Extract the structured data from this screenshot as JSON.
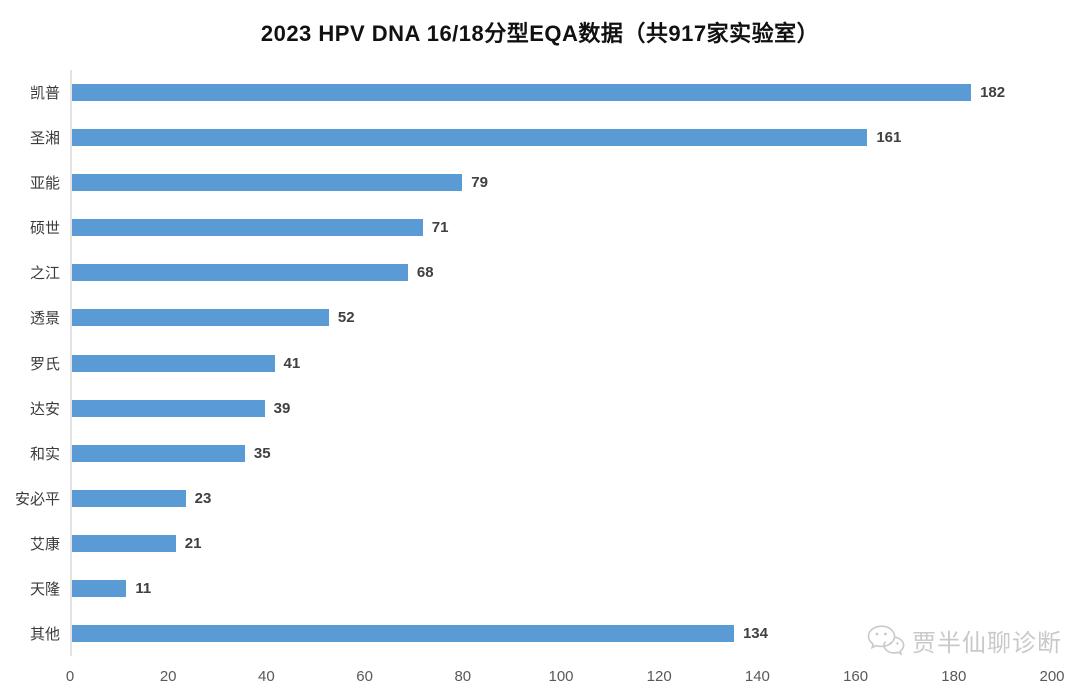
{
  "chart_data": {
    "type": "bar",
    "orientation": "horizontal",
    "title": "2023 HPV DNA 16/18分型EQA数据（共917家实验室）",
    "categories": [
      "凯普",
      "圣湘",
      "亚能",
      "硕世",
      "之江",
      "透景",
      "罗氏",
      "达安",
      "和实",
      "安必平",
      "艾康",
      "天隆",
      "其他"
    ],
    "values": [
      182,
      161,
      79,
      71,
      68,
      52,
      41,
      39,
      35,
      23,
      21,
      11,
      134
    ],
    "xlabel": "",
    "ylabel": "",
    "xlim": [
      0,
      200
    ],
    "x_ticks": [
      0,
      20,
      40,
      60,
      80,
      100,
      120,
      140,
      160,
      180,
      200
    ],
    "grid": false,
    "legend": "none",
    "data_labels": true,
    "bar_color": "#5B9BD5",
    "axis_line_color": "#e2e2e2",
    "value_label_color": "#404040",
    "tick_label_color": "#595959"
  },
  "watermark": {
    "icon": "wechat-icon",
    "text": "贾半仙聊诊断",
    "color": "#c9c9c9"
  }
}
